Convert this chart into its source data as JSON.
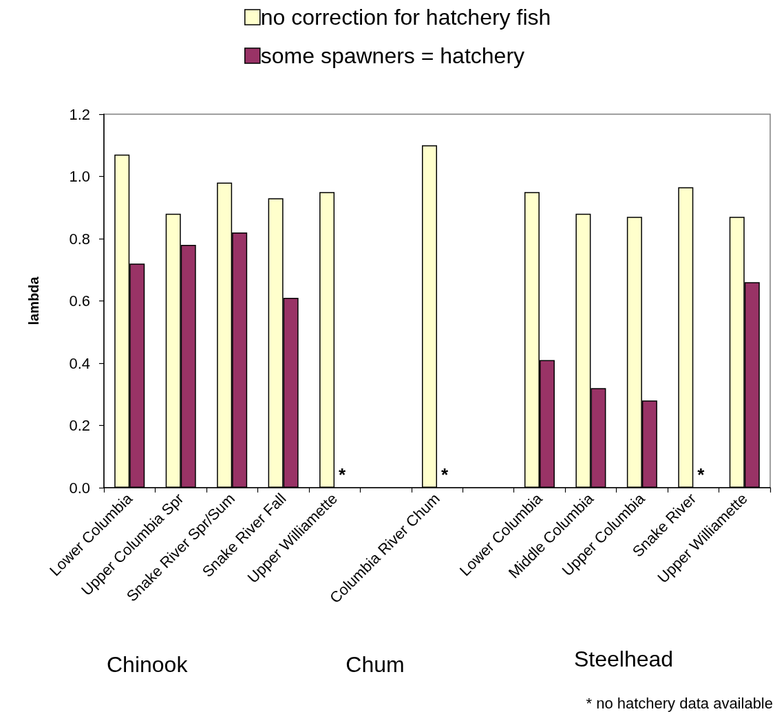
{
  "chart_data": {
    "type": "bar",
    "ylabel": "lambda",
    "categories": [
      "Lower Columbia",
      "Upper Columbia Spr",
      "Snake River Spr/Sum",
      "Snake River Fall",
      "Upper Williamette",
      null,
      "Columbia River Chum",
      null,
      "Lower Columbia",
      "Middle Columbia",
      "Upper Columbia",
      "Snake River",
      "Upper Williamette"
    ],
    "series": [
      {
        "name": "no correction for hatchery fish",
        "color": "#ffffcc",
        "values": [
          1.07,
          0.88,
          0.98,
          0.93,
          0.95,
          null,
          1.1,
          null,
          0.95,
          0.88,
          0.87,
          0.965,
          0.87
        ]
      },
      {
        "name": "some spawners = hatchery",
        "color": "#993366",
        "values": [
          0.72,
          0.78,
          0.82,
          0.61,
          null,
          null,
          null,
          null,
          0.41,
          0.32,
          0.28,
          null,
          0.66
        ]
      }
    ],
    "ylim": [
      0,
      1.2
    ],
    "yticks": [
      {
        "value": 0,
        "label": "0.0"
      },
      0.2,
      0.4,
      0.6,
      0.8,
      {
        "value": 1,
        "label": "1.0"
      },
      1.2
    ],
    "legend": "top",
    "annotations": [
      "Chinook",
      "Chum",
      "Steelhead",
      "* no hatchery data available",
      {
        "text": "*",
        "x": "Upper Williamette",
        "y": 0
      },
      {
        "text": "*",
        "x": "Columbia River Chum",
        "y": 0
      },
      {
        "text": "*",
        "x": "Snake River",
        "y": 0
      }
    ]
  }
}
